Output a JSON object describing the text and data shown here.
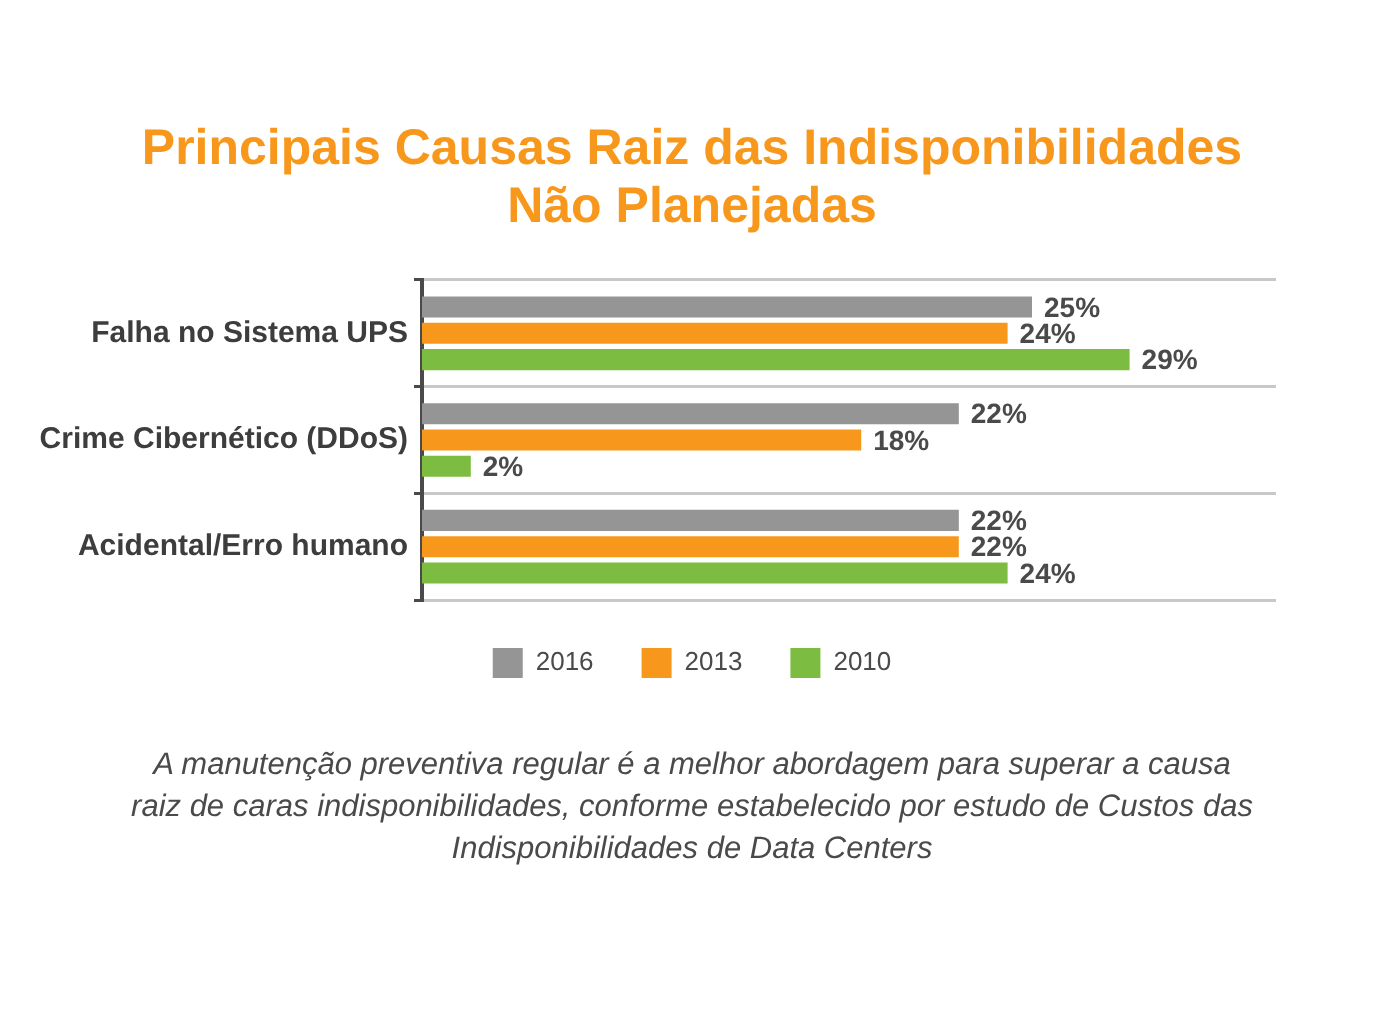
{
  "chart_data": {
    "type": "bar",
    "orientation": "horizontal",
    "title": "Principais Causas Raiz das Indisponibilidades Não Planejadas",
    "categories": [
      "Falha no Sistema UPS",
      "Crime Cibernético (DDoS)",
      "Acidental/Erro humano"
    ],
    "series": [
      {
        "name": "2016",
        "color": "#959595",
        "values": [
          25,
          22,
          22
        ],
        "value_labels": [
          "25%",
          "22%",
          "22%"
        ]
      },
      {
        "name": "2013",
        "color": "#f7981d",
        "values": [
          24,
          18,
          22
        ],
        "value_labels": [
          "24%",
          "18%",
          "22%"
        ]
      },
      {
        "name": "2010",
        "color": "#7cbd41",
        "values": [
          29,
          2,
          24
        ],
        "value_labels": [
          "29%",
          "2%",
          "24%"
        ]
      }
    ],
    "xlim": [
      0,
      35
    ],
    "tick_labels": "y",
    "grid": "y",
    "legend": "bottom",
    "annotations": [
      "A manutenção preventiva regular é a melhor abordagem para superar a causa raiz de caras indisponibilidades, conforme estabelecido por estudo de Custos das Indisponibilidades de Data Centers"
    ]
  }
}
